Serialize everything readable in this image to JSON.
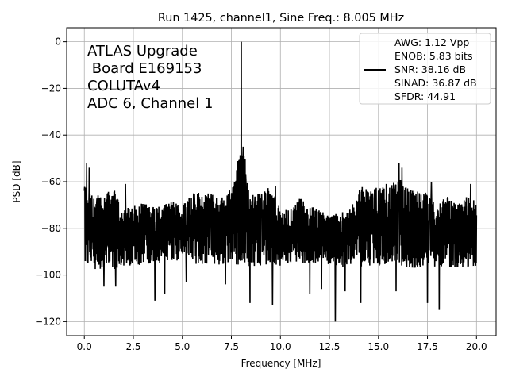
{
  "chart_data": {
    "type": "line",
    "title": "Run 1425, channel1, Sine Freq.: 8.005 MHz",
    "xlabel": "Frequency [MHz]",
    "ylabel": "PSD [dB]",
    "xlim": [
      -0.9,
      21.0
    ],
    "ylim": [
      -126,
      6
    ],
    "xticks": [
      0,
      2.5,
      5,
      7.5,
      10,
      12.5,
      15,
      17.5,
      20
    ],
    "xtick_labels": [
      "0.0",
      "2.5",
      "5.0",
      "7.5",
      "10.0",
      "12.5",
      "15.0",
      "17.5",
      "20.0"
    ],
    "yticks": [
      0,
      -20,
      -40,
      -60,
      -80,
      -100,
      -120
    ],
    "ytick_labels": [
      "0",
      "−20",
      "−40",
      "−60",
      "−80",
      "−100",
      "−120"
    ],
    "grid": true,
    "series": [
      {
        "name": "PSD",
        "color": "#000000",
        "envelope_x": [
          0,
          0.5,
          1,
          1.5,
          2,
          2.5,
          3,
          3.5,
          4,
          4.5,
          5,
          5.5,
          6,
          6.5,
          7,
          7.5,
          8,
          8.5,
          9,
          9.5,
          10,
          10.5,
          11,
          11.5,
          12,
          12.5,
          13,
          13.5,
          14,
          14.5,
          15,
          15.5,
          16,
          16.5,
          17,
          17.5,
          18,
          18.5,
          19,
          19.5,
          20
        ],
        "envelope_upper": [
          -60,
          -66,
          -65,
          -63,
          -72,
          -70,
          -68,
          -70,
          -70,
          -68,
          -70,
          -64,
          -64,
          -65,
          -66,
          -62,
          -55,
          -63,
          -65,
          -62,
          -72,
          -72,
          -67,
          -70,
          -72,
          -73,
          -73,
          -73,
          -61,
          -64,
          -62,
          -63,
          -58,
          -63,
          -64,
          -64,
          -70,
          -66,
          -70,
          -66,
          -68
        ],
        "envelope_lower": [
          -95,
          -98,
          -97,
          -98,
          -96,
          -96,
          -96,
          -95,
          -95,
          -94,
          -94,
          -95,
          -96,
          -96,
          -96,
          -96,
          -97,
          -97,
          -96,
          -96,
          -96,
          -95,
          -95,
          -95,
          -95,
          -96,
          -97,
          -96,
          -97,
          -96,
          -96,
          -96,
          -96,
          -97,
          -97,
          -96,
          -97,
          -97,
          -97,
          -97,
          -96
        ],
        "peaks": [
          [
            8.005,
            0
          ],
          [
            7.95,
            -40
          ],
          [
            8.1,
            -45
          ],
          [
            0.12,
            -52
          ],
          [
            0.25,
            -54
          ],
          [
            16.05,
            -52
          ],
          [
            16.2,
            -54
          ],
          [
            9.75,
            -62
          ],
          [
            14.1,
            -60
          ],
          [
            15.4,
            -61
          ],
          [
            17.7,
            -60
          ],
          [
            2.1,
            -61
          ],
          [
            19.7,
            -61
          ]
        ],
        "dips": [
          [
            12.8,
            -120
          ],
          [
            9.6,
            -113
          ],
          [
            3.6,
            -111
          ],
          [
            4.1,
            -108
          ],
          [
            11.5,
            -108
          ],
          [
            14.1,
            -112
          ],
          [
            18.1,
            -115
          ],
          [
            17.5,
            -112
          ],
          [
            8.45,
            -112
          ],
          [
            1.0,
            -105
          ],
          [
            1.6,
            -105
          ],
          [
            5.2,
            -103
          ],
          [
            13.3,
            -107
          ],
          [
            12.1,
            -106
          ],
          [
            7.2,
            -104
          ],
          [
            15.9,
            -107
          ]
        ]
      }
    ],
    "legend": {
      "placement": "top-right",
      "entries": [
        "AWG: 1.12 Vpp",
        "ENOB: 5.83 bits",
        "SNR: 38.16 dB",
        "SINAD: 36.87 dB",
        "SFDR: 44.91"
      ]
    },
    "annotation": [
      "ATLAS Upgrade",
      " Board E169153",
      "COLUTAv4",
      "ADC 6, Channel 1"
    ]
  }
}
